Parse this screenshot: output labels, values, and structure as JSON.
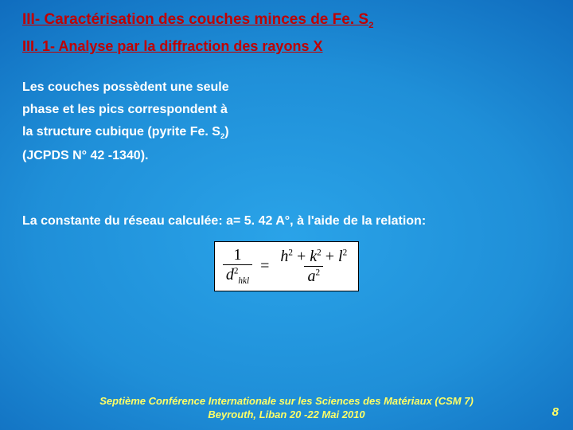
{
  "title": {
    "text": "III- Caractérisation des couches minces de Fe. S",
    "sub": "2",
    "color": "#c00000",
    "fontsize": 19
  },
  "subtitle": {
    "text": "III. 1- Analyse par la diffraction des rayons X",
    "color": "#c00000",
    "fontsize": 18
  },
  "paragraph1": {
    "lines": [
      "Les couches possèdent une seule",
      "phase et les pics correspondent à",
      "la structure cubique (pyrite Fe. S",
      "(JCPDS N° 42 -1340)."
    ],
    "line3_sub": "2",
    "line3_tail": ")",
    "color": "#ffffff",
    "fontsize": 16
  },
  "paragraph2": {
    "text": "La constante du réseau calculée: a= 5. 42 A°, à l'aide de la relation:",
    "color": "#ffffff",
    "fontsize": 16
  },
  "formula": {
    "left_num": "1",
    "left_den_base": "d",
    "left_den_sub": "hkl",
    "left_den_sup": "2",
    "eq": "=",
    "right_num_terms": [
      "h",
      "k",
      "l"
    ],
    "right_num_sup": "2",
    "right_num_plus": "+",
    "right_den_base": "a",
    "right_den_sup": "2",
    "bg": "#ffffff",
    "border": "#000000",
    "fontfamily": "Times New Roman"
  },
  "footer": {
    "line1": "Septième Conférence  Internationale sur les Sciences des Matériaux (CSM 7)",
    "line2": "Beyrouth, Liban 20 -22 Mai 2010",
    "color": "#ffff66",
    "fontsize": 13
  },
  "pagenum": {
    "text": "8",
    "color": "#ffff66"
  }
}
